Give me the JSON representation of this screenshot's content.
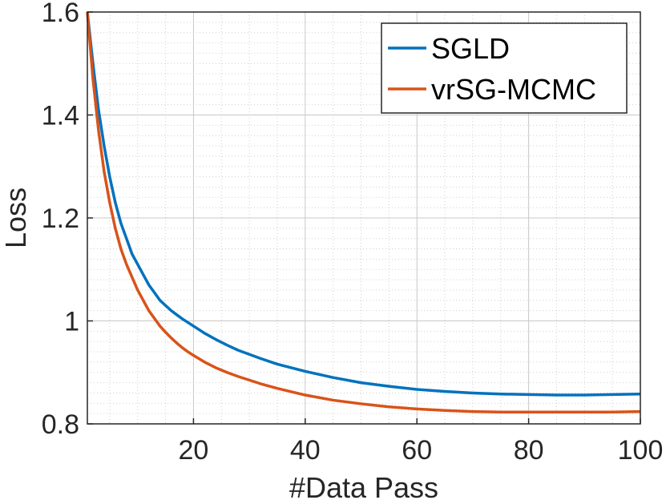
{
  "chart_data": {
    "type": "line",
    "title": "",
    "xlabel": "#Data Pass",
    "ylabel": "Loss",
    "xlim": [
      1,
      100
    ],
    "ylim": [
      0.8,
      1.6
    ],
    "xticks": [
      20,
      40,
      60,
      80,
      100
    ],
    "xtick_labels": [
      "20",
      "40",
      "60",
      "80",
      "100"
    ],
    "yticks": [
      0.8,
      1.0,
      1.2,
      1.4,
      1.6
    ],
    "ytick_labels": [
      "0.8",
      "1",
      "1.2",
      "1.4",
      "1.6"
    ],
    "grid": true,
    "minor_grid": true,
    "legend_position": "top-right",
    "series": [
      {
        "name": "SGLD",
        "color": "#0072BD",
        "x": [
          1,
          2,
          3,
          4,
          5,
          6,
          7,
          8,
          9,
          10,
          11,
          12,
          13,
          14,
          15,
          16,
          17,
          18,
          19,
          20,
          22,
          24,
          26,
          28,
          30,
          32,
          35,
          40,
          45,
          50,
          55,
          60,
          65,
          70,
          75,
          80,
          85,
          90,
          95,
          100
        ],
        "y": [
          1.6,
          1.5,
          1.41,
          1.34,
          1.28,
          1.23,
          1.19,
          1.16,
          1.13,
          1.11,
          1.09,
          1.07,
          1.055,
          1.04,
          1.03,
          1.02,
          1.012,
          1.004,
          0.997,
          0.99,
          0.976,
          0.964,
          0.953,
          0.943,
          0.935,
          0.927,
          0.916,
          0.902,
          0.89,
          0.88,
          0.873,
          0.867,
          0.863,
          0.86,
          0.858,
          0.857,
          0.856,
          0.856,
          0.857,
          0.858
        ]
      },
      {
        "name": "vrSG-MCMC",
        "color": "#D95319",
        "x": [
          1,
          2,
          3,
          4,
          5,
          6,
          7,
          8,
          9,
          10,
          11,
          12,
          13,
          14,
          15,
          16,
          17,
          18,
          19,
          20,
          22,
          24,
          26,
          28,
          30,
          32,
          35,
          40,
          45,
          50,
          55,
          60,
          65,
          70,
          75,
          80,
          85,
          90,
          95,
          100
        ],
        "y": [
          1.6,
          1.47,
          1.37,
          1.29,
          1.23,
          1.18,
          1.14,
          1.11,
          1.085,
          1.06,
          1.04,
          1.02,
          1.005,
          0.99,
          0.978,
          0.967,
          0.957,
          0.948,
          0.94,
          0.933,
          0.92,
          0.909,
          0.9,
          0.892,
          0.885,
          0.878,
          0.869,
          0.856,
          0.846,
          0.839,
          0.833,
          0.829,
          0.826,
          0.824,
          0.823,
          0.823,
          0.823,
          0.823,
          0.823,
          0.824
        ]
      }
    ]
  }
}
